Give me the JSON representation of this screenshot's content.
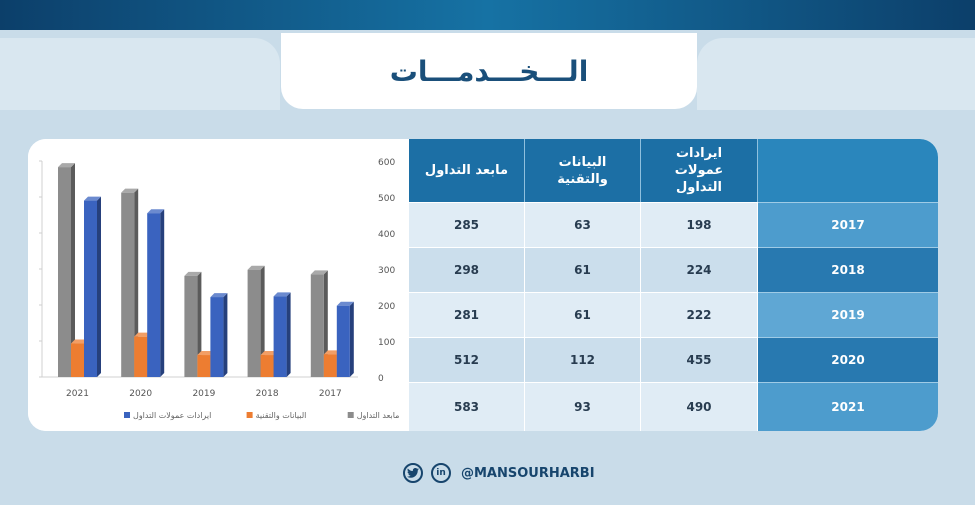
{
  "title": "الـــخـــدمـــات",
  "table": {
    "headers": [
      "مابعد التداول",
      "البيانات والتقنية",
      "ايرادات عمولات التداول",
      ""
    ],
    "rows": [
      {
        "year": "2017",
        "post_trade": "285",
        "data_tech": "63",
        "commissions": "198"
      },
      {
        "year": "2018",
        "post_trade": "298",
        "data_tech": "61",
        "commissions": "224"
      },
      {
        "year": "2019",
        "post_trade": "281",
        "data_tech": "61",
        "commissions": "222"
      },
      {
        "year": "2020",
        "post_trade": "512",
        "data_tech": "112",
        "commissions": "455"
      },
      {
        "year": "2021",
        "post_trade": "583",
        "data_tech": "93",
        "commissions": "490"
      }
    ]
  },
  "chart_data": {
    "type": "bar",
    "categories": [
      "2021",
      "2020",
      "2019",
      "2018",
      "2017"
    ],
    "series": [
      {
        "name": "مابعد التداول",
        "color": "#8c8c8c",
        "values": [
          583,
          512,
          281,
          298,
          285
        ]
      },
      {
        "name": "البيانات والتقنية",
        "color": "#ed7d31",
        "values": [
          93,
          112,
          61,
          61,
          63
        ]
      },
      {
        "name": "ايرادات عمولات التداول",
        "color": "#3a63bf",
        "values": [
          490,
          455,
          222,
          224,
          198
        ]
      }
    ],
    "yticks": [
      "0",
      "100",
      "200",
      "300",
      "400",
      "500",
      "600"
    ],
    "ylim": [
      0,
      600
    ],
    "axis_side": "right",
    "legend_placement": "bottom",
    "grid": false
  },
  "footer": {
    "twitter_icon": "twitter-icon",
    "linkedin_icon": "linkedin-icon",
    "linkedin_glyph": "in",
    "handle": "@MANSOURHARBI"
  }
}
